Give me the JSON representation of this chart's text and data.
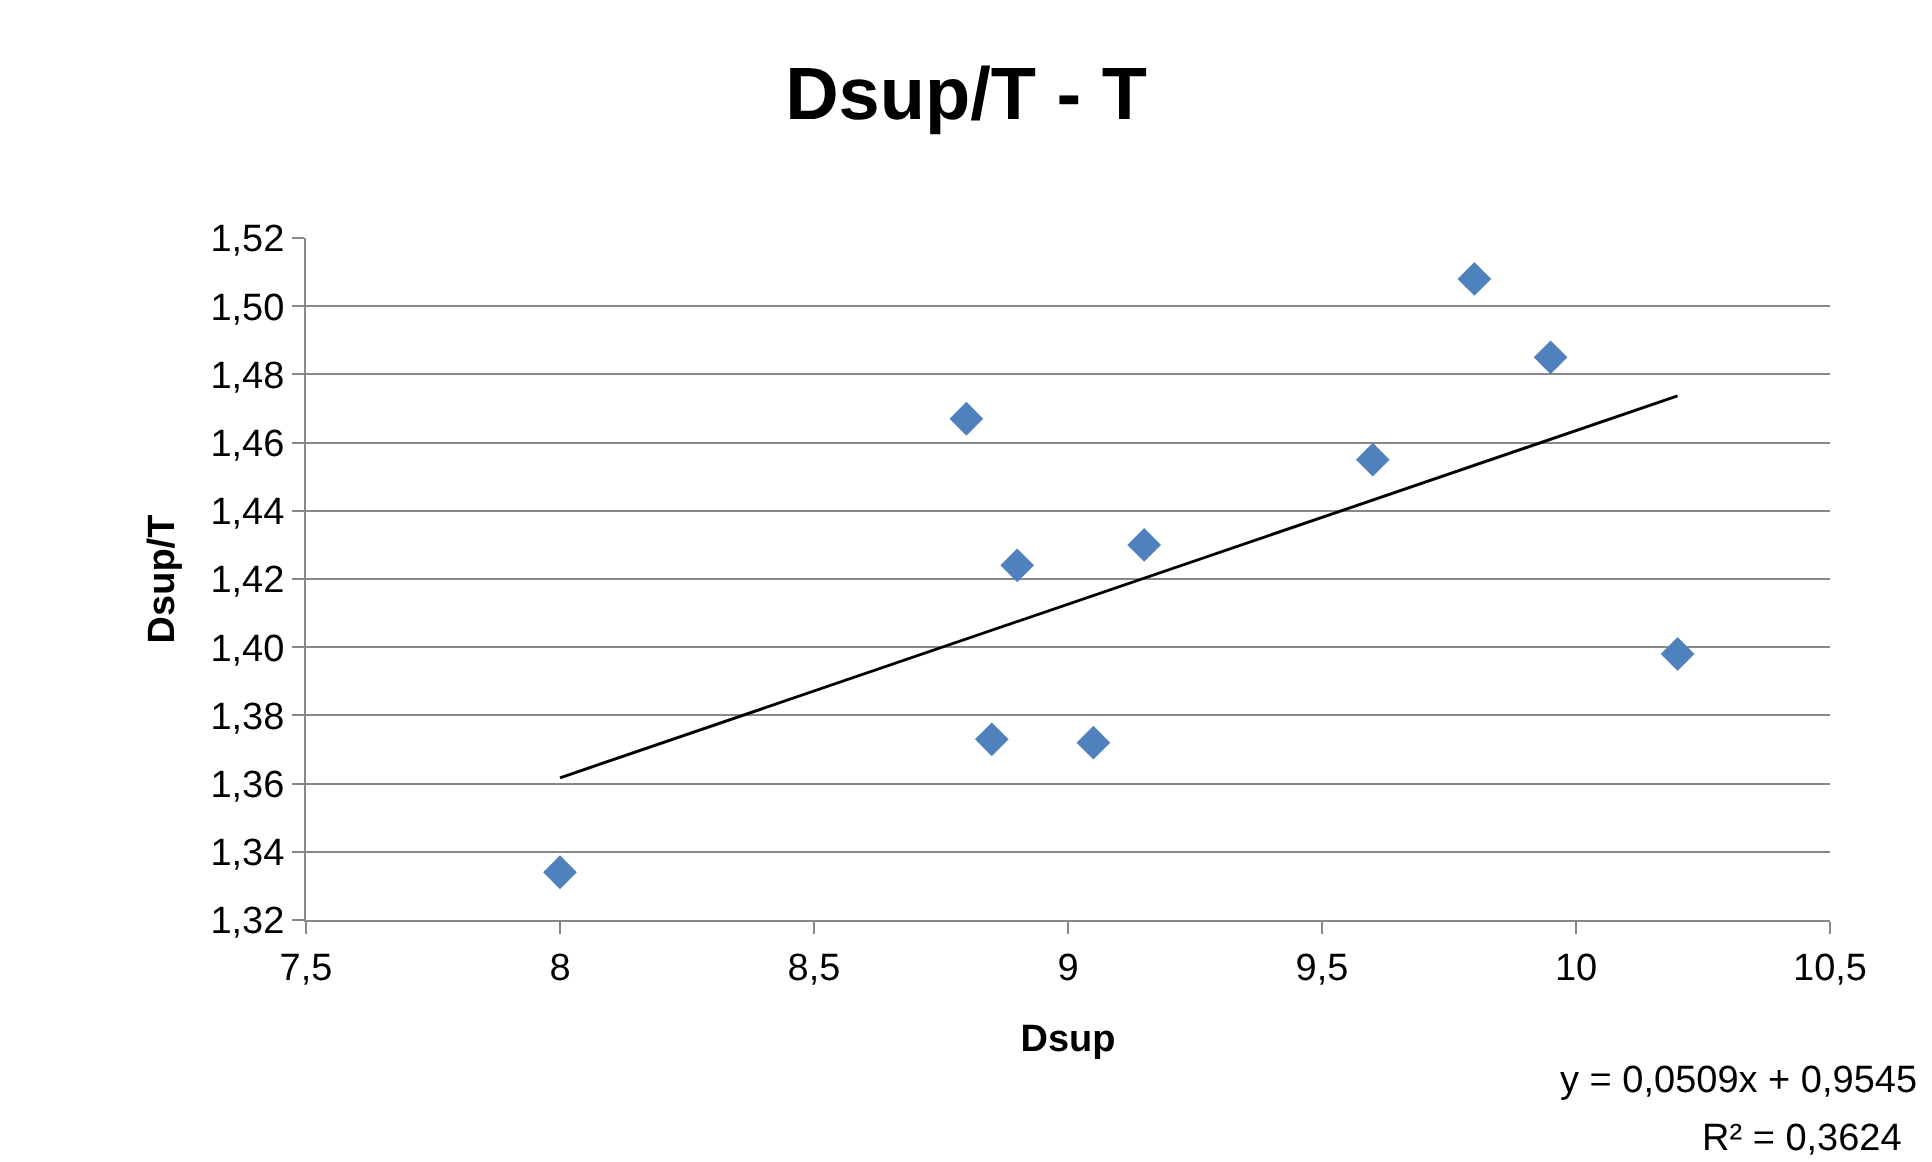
{
  "chart_data": {
    "type": "scatter",
    "title": "Dsup/T - T",
    "xlabel": "Dsup",
    "ylabel": "Dsup/T",
    "series": [
      {
        "color": "#4f81bd",
        "x": [
          8,
          8.8,
          8.9,
          8.85,
          9.05,
          9.15,
          9.6,
          9.8,
          9.95,
          10.2
        ],
        "values": [
          1.334,
          1.467,
          1.424,
          1.373,
          1.372,
          1.43,
          1.455,
          1.508,
          1.485,
          1.398
        ]
      },
      {
        "type": "line",
        "marker": "none",
        "color": "#000000",
        "x": [
          8,
          10.2
        ],
        "values": [
          1.3617,
          1.4737
        ]
      }
    ],
    "xlim": [
      7.5,
      10.5
    ],
    "xticks": [
      {
        "value": 7.5,
        "label": "7,5"
      },
      8,
      {
        "value": 8.5,
        "label": "8,5"
      },
      9,
      {
        "value": 9.5,
        "label": "9,5"
      },
      10,
      {
        "value": 10.5,
        "label": "10,5"
      }
    ],
    "ylim": [
      1.32,
      1.52
    ],
    "yticks": [
      {
        "value": 1.32,
        "label": "1,32"
      },
      {
        "value": 1.34,
        "label": "1,34"
      },
      {
        "value": 1.36,
        "label": "1,36"
      },
      {
        "value": 1.38,
        "label": "1,38"
      },
      {
        "value": 1.4,
        "label": "1,40"
      },
      {
        "value": 1.42,
        "label": "1,42"
      },
      {
        "value": 1.44,
        "label": "1,44"
      },
      {
        "value": 1.46,
        "label": "1,46"
      },
      {
        "value": 1.48,
        "label": "1,48"
      },
      {
        "value": 1.5,
        "label": "1,50"
      },
      {
        "value": 1.52,
        "label": "1,52"
      }
    ],
    "annotations": [
      "y = 0,0509x + 0,9545",
      "R² = 0,3624"
    ],
    "grid": "y",
    "marker": "diamond",
    "line_style": "solid"
  }
}
